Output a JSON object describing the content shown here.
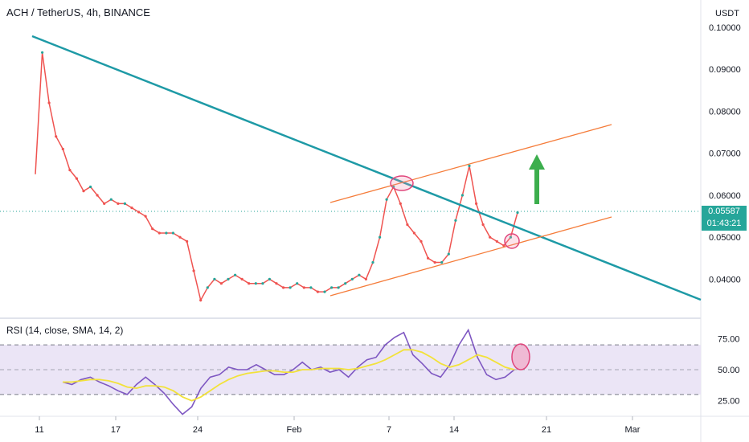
{
  "header": {
    "title": "ACH / TetherUS, 4h, BINANCE",
    "unit": "USDT"
  },
  "price_tag": {
    "price": "0.05587",
    "countdown": "01:43:21"
  },
  "rsi_panel": {
    "title": "RSI (14, close, SMA, 14, 2)"
  },
  "colors": {
    "up": "#26a69a",
    "down": "#ef5350",
    "trendline": "#1e9aa6",
    "channel": "#f57c3a",
    "marker": "#e0457b",
    "arrow": "#3cae4d",
    "rsi": "#7e57c2",
    "rsi_sma": "#f2e23a",
    "rsi_band": "#e9e2f5"
  },
  "chart_data": [
    {
      "type": "line",
      "title": "ACH / TetherUS, 4h, BINANCE",
      "ylabel": "USDT",
      "ylim": [
        0.033,
        0.1
      ],
      "y_ticks": [
        "0.10000",
        "0.09000",
        "0.08000",
        "0.07000",
        "0.06000",
        "0.05000",
        "0.04000"
      ],
      "x_ticks": [
        "11",
        "17",
        "24",
        "Feb",
        "7",
        "14",
        "21",
        "Mar"
      ],
      "series": [
        {
          "values": [
            0.065,
            0.094,
            0.082,
            0.074,
            0.071,
            0.066,
            0.064,
            0.061,
            0.062,
            0.06,
            0.058,
            0.059,
            0.058,
            0.058,
            0.057,
            0.056,
            0.055,
            0.052,
            0.051,
            0.051,
            0.051,
            0.05,
            0.049,
            0.042,
            0.035,
            0.038,
            0.04,
            0.039,
            0.04,
            0.041,
            0.04,
            0.039,
            0.039,
            0.039,
            0.04,
            0.039,
            0.038,
            0.038,
            0.039,
            0.038,
            0.038,
            0.037,
            0.037,
            0.038,
            0.038,
            0.039,
            0.04,
            0.041,
            0.04,
            0.044,
            0.05,
            0.059,
            0.062,
            0.058,
            0.053,
            0.051,
            0.049,
            0.045,
            0.044,
            0.044,
            0.046,
            0.054,
            0.06,
            0.067,
            0.058,
            0.053,
            0.05,
            0.049,
            0.048,
            0.05,
            0.05587
          ]
        }
      ],
      "current_price": 0.05587
    },
    {
      "type": "line",
      "title": "RSI (14, close, SMA, 14, 2)",
      "ylim": [
        15,
        85
      ],
      "y_ticks": [
        "75.00",
        "50.00",
        "25.00"
      ],
      "band": [
        30,
        70
      ],
      "series": [
        {
          "name": "RSI",
          "values": [
            40,
            38,
            42,
            44,
            40,
            37,
            33,
            30,
            38,
            44,
            38,
            31,
            22,
            14,
            20,
            35,
            44,
            46,
            52,
            50,
            50,
            54,
            50,
            46,
            46,
            50,
            56,
            50,
            52,
            48,
            50,
            44,
            52,
            58,
            60,
            70,
            76,
            80,
            62,
            55,
            47,
            44,
            54,
            70,
            82,
            60,
            46,
            42,
            44,
            50
          ]
        },
        {
          "name": "SMA",
          "values": [
            40,
            40,
            41,
            42,
            42,
            41,
            39,
            36,
            35,
            37,
            37,
            36,
            33,
            28,
            25,
            28,
            33,
            38,
            42,
            45,
            47,
            48,
            49,
            49,
            48,
            48,
            50,
            50,
            51,
            51,
            51,
            50,
            51,
            53,
            55,
            58,
            62,
            66,
            66,
            64,
            60,
            55,
            52,
            54,
            58,
            62,
            60,
            56,
            52,
            50
          ]
        }
      ]
    }
  ]
}
